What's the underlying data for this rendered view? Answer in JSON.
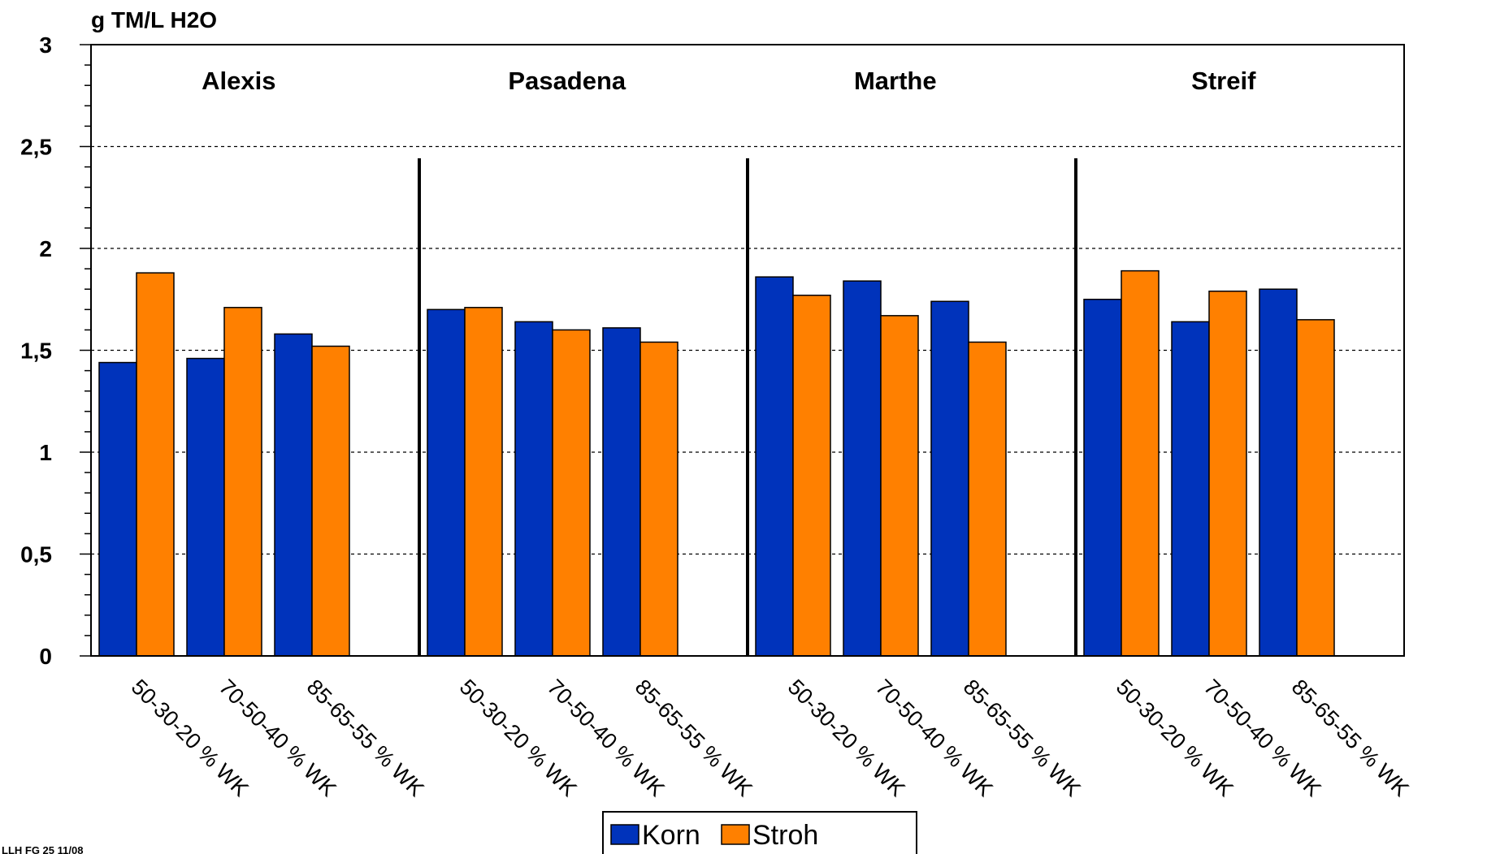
{
  "chart_data": {
    "type": "bar",
    "ylabel": "g TM/L H2O",
    "ylim": [
      0,
      3
    ],
    "yticks": [
      0,
      0.5,
      1,
      1.5,
      2,
      2.5,
      3
    ],
    "ytick_labels": [
      "0",
      "0,5",
      "1",
      "1,5",
      "2",
      "2,5",
      "3"
    ],
    "grid": "horizontal dashed",
    "legend_position": "bottom-center",
    "groups": [
      {
        "name": "Alexis",
        "categories": [
          "50-30-20 % WK",
          "70-50-40 % WK",
          "85-65-55 % WK"
        ]
      },
      {
        "name": "Pasadena",
        "categories": [
          "50-30-20 % WK",
          "70-50-40 % WK",
          "85-65-55 % WK"
        ]
      },
      {
        "name": "Marthe",
        "categories": [
          "50-30-20 % WK",
          "70-50-40 % WK",
          "85-65-55 % WK"
        ]
      },
      {
        "name": "Streif",
        "categories": [
          "50-30-20 % WK",
          "70-50-40 % WK",
          "85-65-55 % WK"
        ]
      }
    ],
    "series": [
      {
        "name": "Korn",
        "color": "#0033BB",
        "values": [
          1.44,
          1.46,
          1.58,
          1.7,
          1.64,
          1.61,
          1.86,
          1.84,
          1.74,
          1.75,
          1.64,
          1.8
        ]
      },
      {
        "name": "Stroh",
        "color": "#FF8000",
        "values": [
          1.88,
          1.71,
          1.52,
          1.71,
          1.6,
          1.54,
          1.77,
          1.67,
          1.54,
          1.89,
          1.79,
          1.65
        ]
      }
    ]
  },
  "footnote": "LLH FG 25 11/08"
}
